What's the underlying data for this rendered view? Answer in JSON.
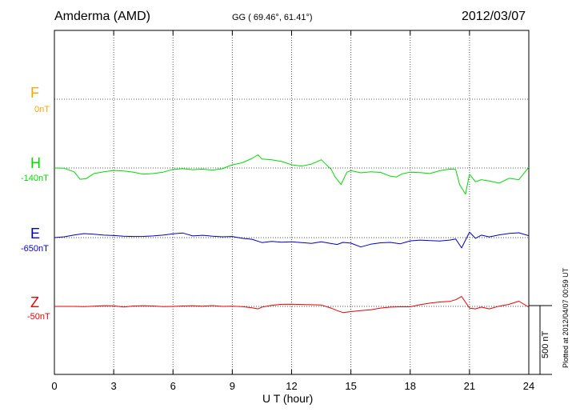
{
  "header": {
    "station": "Amderma (AMD)",
    "coords": "GG ( 69.46°,  61.41°)",
    "date": "2012/03/07"
  },
  "footer": {
    "xlabel": "U T (hour)",
    "plotted": "Plotted at 2012/04/07 00:59 UT",
    "scale_label": "500 nT"
  },
  "channels": [
    {
      "name": "F",
      "offset": "0nT",
      "color": "#ffa500"
    },
    {
      "name": "H",
      "offset": "-140nT",
      "color": "#00dd00"
    },
    {
      "name": "E",
      "offset": "-650nT",
      "color": "#0000cc"
    },
    {
      "name": "Z",
      "offset": "-50nT",
      "color": "#ee0000"
    }
  ],
  "chart_data": {
    "type": "line",
    "xlabel": "U T (hour)",
    "xlim": [
      0,
      24
    ],
    "x_ticks": [
      "0",
      "3",
      "6",
      "9",
      "12",
      "15",
      "18",
      "21",
      "24"
    ],
    "scale_bar_nT": 500,
    "series": [
      {
        "name": "H",
        "color": "#00dd00",
        "x": [
          0,
          0.5,
          1,
          1.3,
          1.6,
          2,
          2.5,
          3,
          3.5,
          4,
          4.5,
          5,
          5.5,
          6,
          6.5,
          7,
          7.5,
          8,
          8.5,
          9,
          9.5,
          10,
          10.3,
          10.5,
          11,
          11.5,
          12,
          12.5,
          13,
          13.5,
          14,
          14.2,
          14.5,
          14.8,
          15,
          15.5,
          16,
          16.5,
          17,
          17.3,
          17.6,
          18,
          18.5,
          19,
          19.5,
          20,
          20.3,
          20.5,
          20.8,
          21,
          21.3,
          21.6,
          22,
          22.5,
          23,
          23.5,
          24
        ],
        "y": [
          0,
          -2,
          -28,
          -82,
          -78,
          -40,
          -28,
          -18,
          -22,
          -30,
          -45,
          -40,
          -30,
          -10,
          -5,
          -12,
          -8,
          -15,
          -5,
          23,
          38,
          70,
          96,
          65,
          60,
          47,
          23,
          14,
          28,
          60,
          -10,
          -65,
          -120,
          -30,
          -20,
          -35,
          -28,
          -32,
          -60,
          -65,
          -42,
          -30,
          -33,
          -40,
          -20,
          -8,
          -10,
          -120,
          -190,
          -45,
          -100,
          -85,
          -95,
          -110,
          -75,
          -85,
          5
        ]
      },
      {
        "name": "E",
        "color": "#0000cc",
        "x": [
          0,
          0.5,
          1,
          1.5,
          2,
          2.5,
          3,
          3.5,
          4,
          4.5,
          5,
          5.5,
          6,
          6.5,
          7,
          7.5,
          8,
          8.5,
          9,
          9.5,
          10,
          10.5,
          11,
          11.5,
          12,
          12.5,
          13,
          13.5,
          14,
          14.3,
          14.6,
          15,
          15.5,
          16,
          16.5,
          17,
          17.5,
          18,
          18.5,
          19,
          19.5,
          20,
          20.3,
          20.6,
          21,
          21.3,
          21.6,
          22,
          22.5,
          23,
          23.5,
          24
        ],
        "y": [
          0,
          6,
          19,
          29,
          25,
          18,
          15,
          10,
          8,
          9,
          12,
          18,
          28,
          33,
          12,
          17,
          10,
          6,
          8,
          -5,
          -12,
          -36,
          -28,
          -34,
          -30,
          -36,
          -42,
          -30,
          -43,
          -50,
          -35,
          -40,
          -68,
          -48,
          -38,
          -35,
          -45,
          -24,
          -18,
          -22,
          -25,
          -18,
          -10,
          -75,
          40,
          -5,
          18,
          5,
          20,
          30,
          35,
          14
        ]
      },
      {
        "name": "Z",
        "color": "#ee0000",
        "x": [
          0,
          0.5,
          1,
          1.5,
          2,
          2.5,
          3,
          3.5,
          4,
          4.5,
          5,
          5.5,
          6,
          6.5,
          7,
          7.5,
          8,
          8.5,
          9,
          9.5,
          10,
          10.3,
          10.5,
          11,
          11.5,
          12,
          12.5,
          13,
          13.5,
          14,
          14.3,
          14.6,
          15,
          15.5,
          16,
          16.5,
          17,
          17.5,
          18,
          18.5,
          19,
          19.5,
          20,
          20.3,
          20.6,
          21,
          21.3,
          21.6,
          22,
          22.5,
          23,
          23.5,
          24
        ],
        "y": [
          0,
          0,
          0,
          -2,
          2,
          5,
          4,
          -4,
          3,
          5,
          3,
          -2,
          0,
          3,
          5,
          2,
          6,
          0,
          2,
          -2,
          -10,
          -18,
          -5,
          8,
          15,
          16,
          14,
          12,
          10,
          -12,
          -30,
          -45,
          -38,
          -30,
          -25,
          -12,
          -5,
          -3,
          -3,
          12,
          24,
          32,
          36,
          48,
          72,
          -12,
          -18,
          -5,
          -18,
          2,
          15,
          38,
          -5
        ]
      }
    ]
  }
}
